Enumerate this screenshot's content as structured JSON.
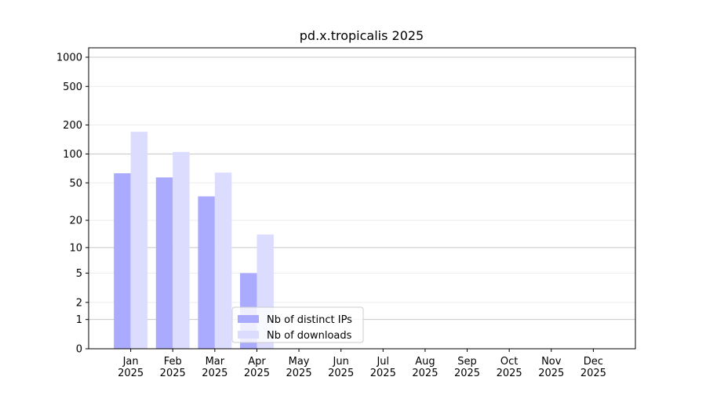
{
  "chart_data": {
    "type": "bar",
    "title": "pd.x.tropicalis 2025",
    "categories": [
      "Jan 2025",
      "Feb 2025",
      "Mar 2025",
      "Apr 2025",
      "May 2025",
      "Jun 2025",
      "Jul 2025",
      "Aug 2025",
      "Sep 2025",
      "Oct 2025",
      "Nov 2025",
      "Dec 2025"
    ],
    "series": [
      {
        "name": "Nb of distinct IPs",
        "color": "#aaaaff",
        "values": [
          63,
          57,
          36,
          5,
          null,
          null,
          null,
          null,
          null,
          null,
          null,
          null
        ]
      },
      {
        "name": "Nb of downloads",
        "color": "#dcdcff",
        "values": [
          170,
          105,
          64,
          14,
          null,
          null,
          null,
          null,
          null,
          null,
          null,
          null
        ]
      }
    ],
    "yscale": "log1p",
    "ylim": [
      0,
      1250
    ],
    "yticks": [
      0,
      1,
      2,
      5,
      10,
      20,
      50,
      100,
      200,
      500,
      1000
    ],
    "grid": true,
    "legend": "lower center"
  }
}
